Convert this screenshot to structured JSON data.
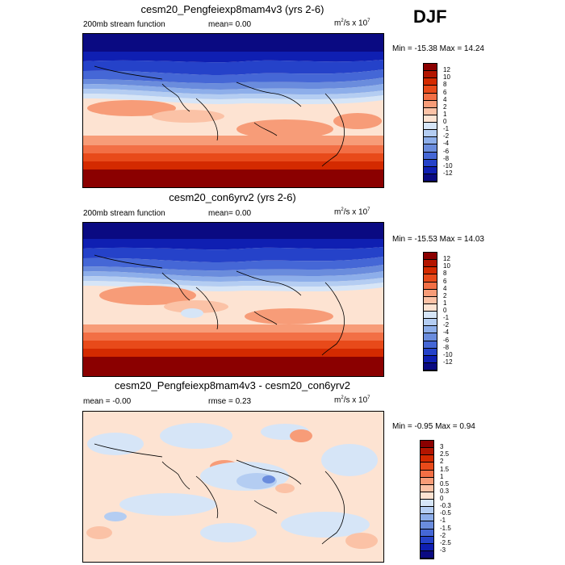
{
  "season": "DJF",
  "panels": [
    {
      "title": "cesm20_Pengfeiexp8mam4v3 (yrs 2-6)",
      "left_label": "200mb stream function",
      "center_label": "mean=  0.00",
      "units_label": "m",
      "units_sup": "2",
      "units_rest": "/s x 10",
      "units_exp": "7",
      "minmax": "Min = -15.38 Max =  14.24",
      "levels": [
        "12",
        "10",
        "8",
        "6",
        "4",
        "2",
        "1",
        "0",
        "-1",
        "-2",
        "-4",
        "-6",
        "-8",
        "-10",
        "-12"
      ],
      "colors": [
        "#8b0000",
        "#b31500",
        "#d42a00",
        "#e84a1a",
        "#f26f45",
        "#f79c78",
        "#fbc2a6",
        "#fde3d2",
        "#d6e5f7",
        "#b4cdf2",
        "#8daeea",
        "#6a8cdd",
        "#4567d6",
        "#2542c9",
        "#0f1fb2",
        "#0a0a82"
      ]
    },
    {
      "title": "cesm20_con6yrv2 (yrs 2-6)",
      "left_label": "200mb stream function",
      "center_label": "mean=  0.00",
      "units_label": "m",
      "units_sup": "2",
      "units_rest": "/s x 10",
      "units_exp": "7",
      "minmax": "Min = -15.53 Max =  14.03",
      "levels": [
        "12",
        "10",
        "8",
        "6",
        "4",
        "2",
        "1",
        "0",
        "-1",
        "-2",
        "-4",
        "-6",
        "-8",
        "-10",
        "-12"
      ],
      "colors": [
        "#8b0000",
        "#b31500",
        "#d42a00",
        "#e84a1a",
        "#f26f45",
        "#f79c78",
        "#fbc2a6",
        "#fde3d2",
        "#d6e5f7",
        "#b4cdf2",
        "#8daeea",
        "#6a8cdd",
        "#4567d6",
        "#2542c9",
        "#0f1fb2",
        "#0a0a82"
      ]
    },
    {
      "title": "cesm20_Pengfeiexp8mam4v3 - cesm20_con6yrv2",
      "left_label": "mean = -0.00",
      "center_label": "rmse =   0.23",
      "units_label": "m",
      "units_sup": "2",
      "units_rest": "/s x 10",
      "units_exp": "7",
      "minmax": "Min =  -0.95 Max =   0.94",
      "levels": [
        "3",
        "2.5",
        "2",
        "1.5",
        "1",
        "0.5",
        "0.3",
        "0",
        "-0.3",
        "-0.5",
        "-1",
        "-1.5",
        "-2",
        "-2.5",
        "-3"
      ],
      "colors": [
        "#8b0000",
        "#b31500",
        "#d42a00",
        "#e84a1a",
        "#f26f45",
        "#f79c78",
        "#fbc2a6",
        "#fde3d2",
        "#d6e5f7",
        "#b4cdf2",
        "#8daeea",
        "#6a8cdd",
        "#4567d6",
        "#2542c9",
        "#0f1fb2",
        "#0a0a82"
      ]
    }
  ]
}
